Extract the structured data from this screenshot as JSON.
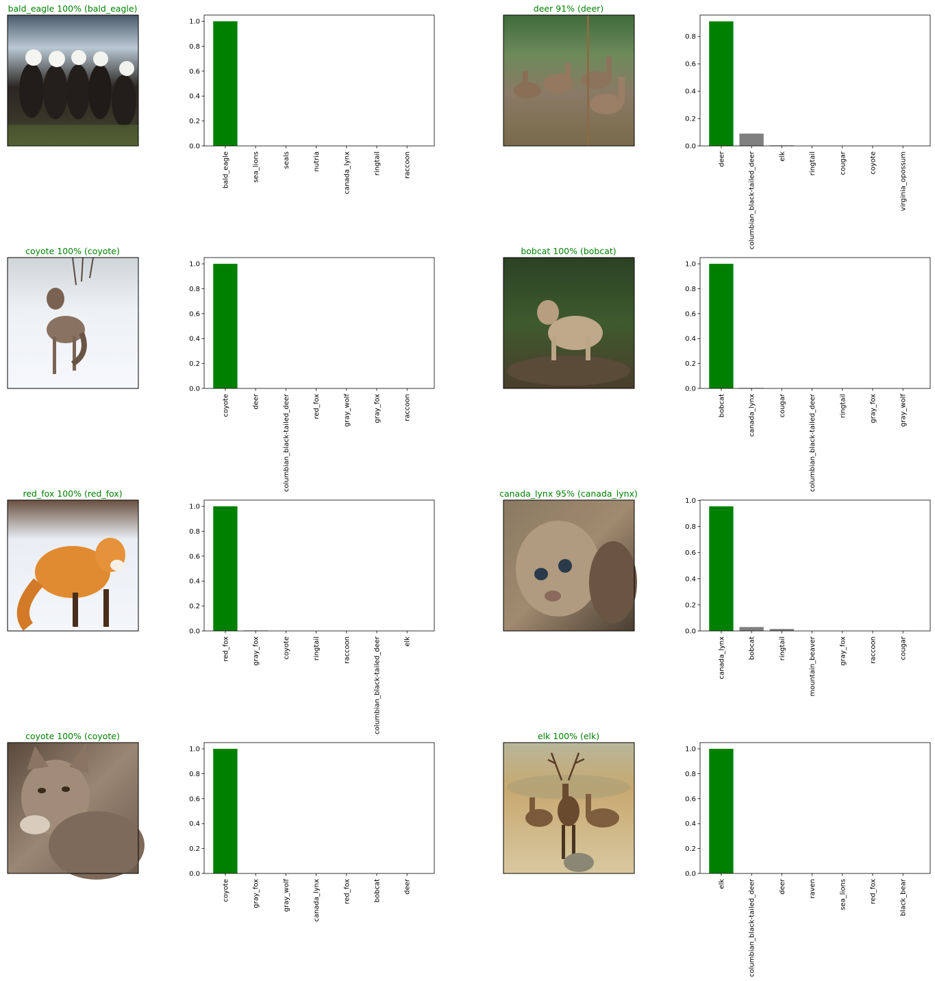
{
  "colors": {
    "correct": "#008000",
    "other": "#808080",
    "axis": "#000000",
    "background": "#ffffff"
  },
  "panels": [
    {
      "title": "bald_eagle 100% (bald_eagle)",
      "image": "bald-eagles-photo",
      "chart_data": {
        "type": "bar",
        "categories": [
          "bald_eagle",
          "sea_lions",
          "seals",
          "nutria",
          "canada_lynx",
          "ringtail",
          "raccoon"
        ],
        "values": [
          1.0,
          0.0,
          0.0,
          0.0,
          0.0,
          0.0,
          0.0
        ],
        "highlight_index": 0,
        "ylim": [
          0,
          1.05
        ],
        "yticks": [
          0.0,
          0.2,
          0.4,
          0.6,
          0.8,
          1.0
        ],
        "ytick_labels": [
          "0.0",
          "0.2",
          "0.4",
          "0.6",
          "0.8",
          "1.0"
        ]
      }
    },
    {
      "title": "deer 91% (deer)",
      "image": "deer-herd-photo",
      "chart_data": {
        "type": "bar",
        "categories": [
          "deer",
          "columbian_black-tailed_deer",
          "elk",
          "ringtail",
          "cougar",
          "coyote",
          "virginia_opossum"
        ],
        "values": [
          0.91,
          0.09,
          0.004,
          0.0,
          0.0,
          0.0,
          0.0
        ],
        "highlight_index": 0,
        "ylim": [
          0,
          0.956
        ],
        "yticks": [
          0.0,
          0.2,
          0.4,
          0.6,
          0.8
        ],
        "ytick_labels": [
          "0.0",
          "0.2",
          "0.4",
          "0.6",
          "0.8"
        ]
      }
    },
    {
      "title": "coyote 100% (coyote)",
      "image": "coyote-snow-photo",
      "chart_data": {
        "type": "bar",
        "categories": [
          "coyote",
          "deer",
          "columbian_black-tailed_deer",
          "red_fox",
          "gray_wolf",
          "gray_fox",
          "raccoon"
        ],
        "values": [
          1.0,
          0.0,
          0.0,
          0.0,
          0.0,
          0.0,
          0.0
        ],
        "highlight_index": 0,
        "ylim": [
          0,
          1.05
        ],
        "yticks": [
          0.0,
          0.2,
          0.4,
          0.6,
          0.8,
          1.0
        ],
        "ytick_labels": [
          "0.0",
          "0.2",
          "0.4",
          "0.6",
          "0.8",
          "1.0"
        ]
      }
    },
    {
      "title": "bobcat 100% (bobcat)",
      "image": "bobcat-log-photo",
      "chart_data": {
        "type": "bar",
        "categories": [
          "bobcat",
          "canada_lynx",
          "cougar",
          "columbian_black-tailed_deer",
          "ringtail",
          "gray_fox",
          "gray_wolf"
        ],
        "values": [
          1.0,
          0.004,
          0.0,
          0.0,
          0.0,
          0.0,
          0.0
        ],
        "highlight_index": 0,
        "ylim": [
          0,
          1.05
        ],
        "yticks": [
          0.0,
          0.2,
          0.4,
          0.6,
          0.8,
          1.0
        ],
        "ytick_labels": [
          "0.0",
          "0.2",
          "0.4",
          "0.6",
          "0.8",
          "1.0"
        ]
      }
    },
    {
      "title": "red_fox 100% (red_fox)",
      "image": "red-fox-snow-photo",
      "chart_data": {
        "type": "bar",
        "categories": [
          "red_fox",
          "gray_fox",
          "coyote",
          "ringtail",
          "raccoon",
          "columbian_black-tailed_deer",
          "elk"
        ],
        "values": [
          1.0,
          0.004,
          0.0,
          0.0,
          0.0,
          0.0,
          0.0
        ],
        "highlight_index": 0,
        "ylim": [
          0,
          1.05
        ],
        "yticks": [
          0.0,
          0.2,
          0.4,
          0.6,
          0.8,
          1.0
        ],
        "ytick_labels": [
          "0.0",
          "0.2",
          "0.4",
          "0.6",
          "0.8",
          "1.0"
        ]
      }
    },
    {
      "title": "canada_lynx 95% (canada_lynx)",
      "image": "lynx-kitten-photo",
      "chart_data": {
        "type": "bar",
        "categories": [
          "canada_lynx",
          "bobcat",
          "ringtail",
          "mountain_beaver",
          "gray_fox",
          "raccoon",
          "cougar"
        ],
        "values": [
          0.955,
          0.03,
          0.015,
          0.0,
          0.0,
          0.0,
          0.0
        ],
        "highlight_index": 0,
        "ylim": [
          0,
          1.003
        ],
        "yticks": [
          0.0,
          0.2,
          0.4,
          0.6,
          0.8,
          1.0
        ],
        "ytick_labels": [
          "0.0",
          "0.2",
          "0.4",
          "0.6",
          "0.8",
          "1.0"
        ]
      }
    },
    {
      "title": "coyote 100% (coyote)",
      "image": "coyote-portrait-photo",
      "chart_data": {
        "type": "bar",
        "categories": [
          "coyote",
          "gray_fox",
          "gray_wolf",
          "canada_lynx",
          "red_fox",
          "bobcat",
          "deer"
        ],
        "values": [
          1.0,
          0.0,
          0.0,
          0.0,
          0.0,
          0.0,
          0.0
        ],
        "highlight_index": 0,
        "ylim": [
          0,
          1.05
        ],
        "yticks": [
          0.0,
          0.2,
          0.4,
          0.6,
          0.8,
          1.0
        ],
        "ytick_labels": [
          "0.0",
          "0.2",
          "0.4",
          "0.6",
          "0.8",
          "1.0"
        ]
      }
    },
    {
      "title": "elk 100% (elk)",
      "image": "elk-meadow-photo",
      "chart_data": {
        "type": "bar",
        "categories": [
          "elk",
          "columbian_black-tailed_deer",
          "deer",
          "raven",
          "sea_lions",
          "red_fox",
          "black_bear"
        ],
        "values": [
          1.0,
          0.0,
          0.0,
          0.0,
          0.0,
          0.0,
          0.0
        ],
        "highlight_index": 0,
        "ylim": [
          0,
          1.05
        ],
        "yticks": [
          0.0,
          0.2,
          0.4,
          0.6,
          0.8,
          1.0
        ],
        "ytick_labels": [
          "0.0",
          "0.2",
          "0.4",
          "0.6",
          "0.8",
          "1.0"
        ]
      }
    }
  ]
}
